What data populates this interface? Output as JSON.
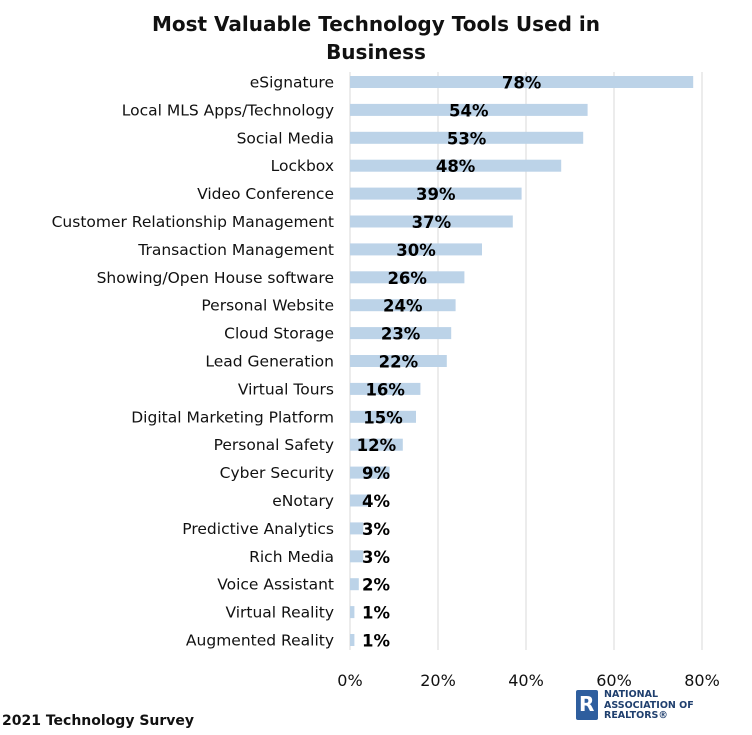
{
  "title": "Most Valuable Technology Tools Used in\nBusiness",
  "footer": {
    "source": "2021 Technology Survey",
    "org_name": "NATIONAL\nASSOCIATION OF\nREALTORS®"
  },
  "colors": {
    "bar": "#BCD3E8",
    "grid": "#D9D9D9",
    "label": "#111111",
    "logo": "#2E5E9E"
  },
  "chart_data": {
    "type": "bar",
    "orientation": "horizontal",
    "title": "Most Valuable Technology Tools Used in Business",
    "xlim": [
      0,
      80
    ],
    "x_ticks": [
      "0%",
      "20%",
      "40%",
      "60%",
      "80%"
    ],
    "x_tick_values": [
      0,
      20,
      40,
      60,
      80
    ],
    "grid": "vertical",
    "categories": [
      "eSignature",
      "Local MLS Apps/Technology",
      "Social Media",
      "Lockbox",
      "Video Conference",
      "Customer Relationship Management",
      "Transaction Management",
      "Showing/Open House software",
      "Personal Website",
      "Cloud Storage",
      "Lead Generation",
      "Virtual Tours",
      "Digital Marketing Platform",
      "Personal Safety",
      "Cyber Security",
      "eNotary",
      "Predictive Analytics",
      "Rich Media",
      "Voice Assistant",
      "Virtual Reality",
      "Augmented Reality"
    ],
    "values": [
      78,
      54,
      53,
      48,
      39,
      37,
      30,
      26,
      24,
      23,
      22,
      16,
      15,
      12,
      9,
      4,
      3,
      3,
      2,
      1,
      1
    ],
    "data_labels": [
      "78%",
      "54%",
      "53%",
      "48%",
      "39%",
      "37%",
      "30%",
      "26%",
      "24%",
      "23%",
      "22%",
      "16%",
      "15%",
      "12%",
      "9%",
      "4%",
      "3%",
      "3%",
      "2%",
      "1%",
      "1%"
    ]
  }
}
